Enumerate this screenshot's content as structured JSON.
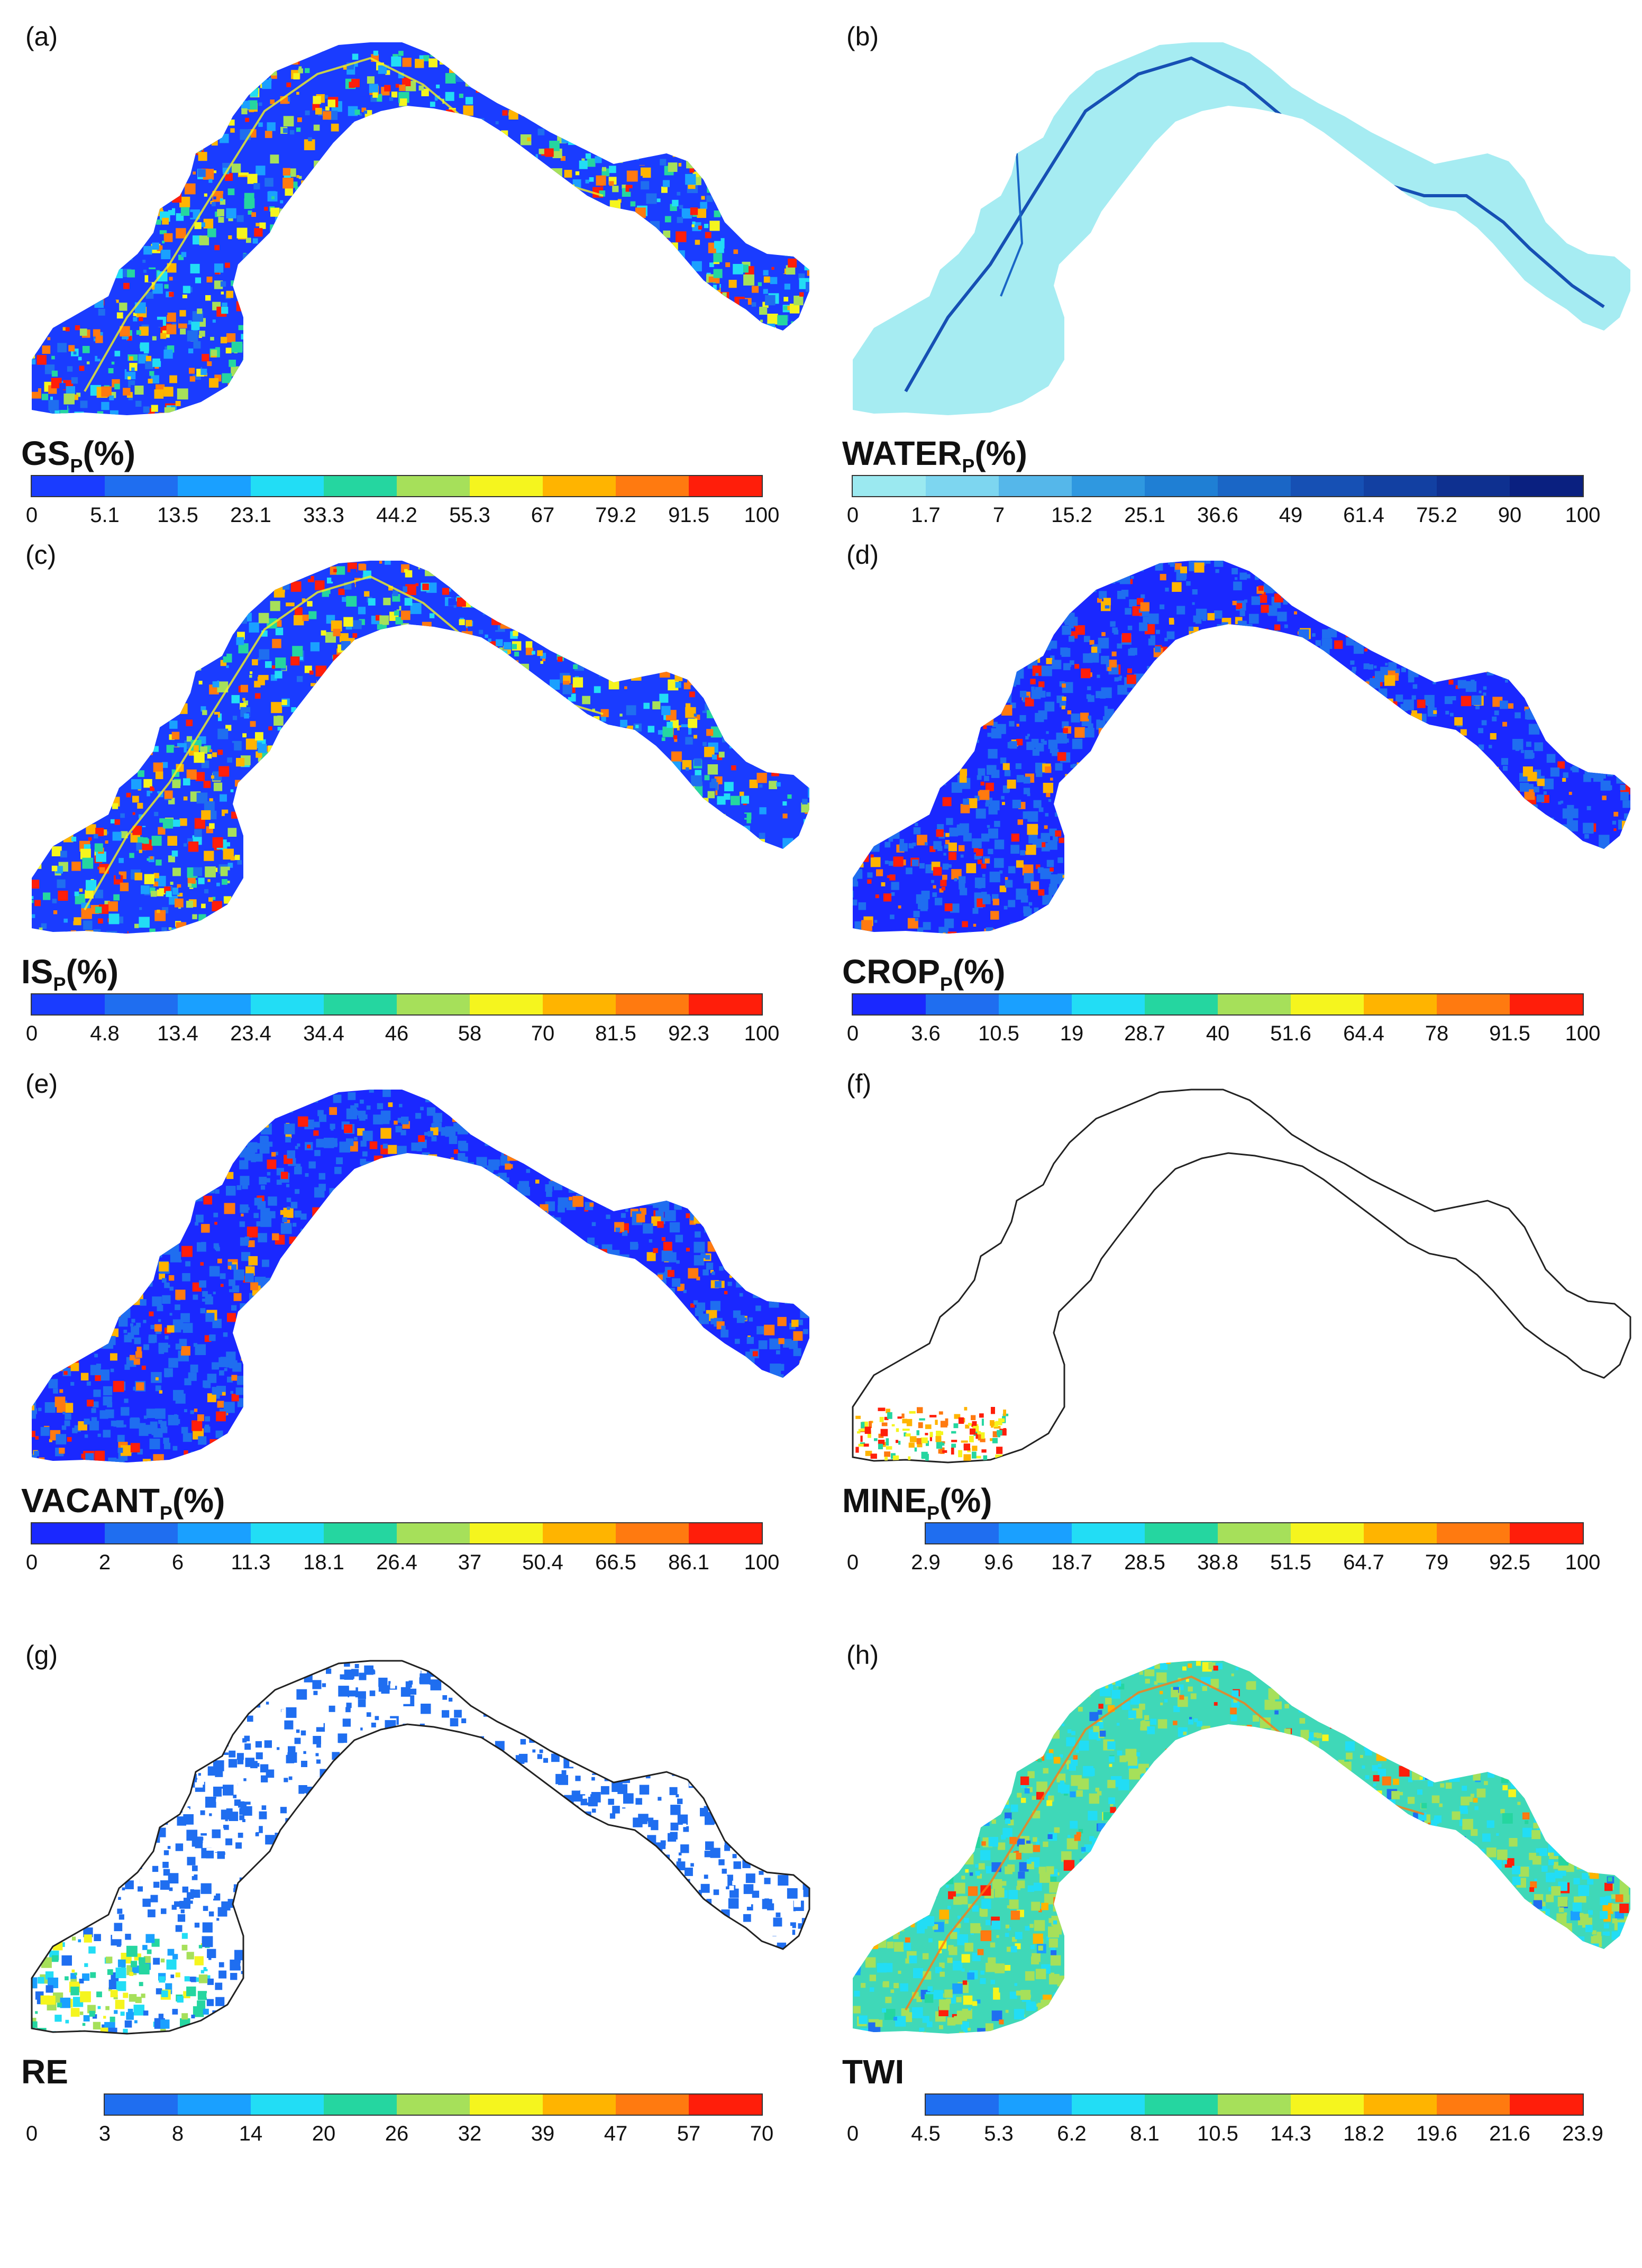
{
  "figure": {
    "panels": [
      {
        "id": "a",
        "letter": "(a)",
        "var_main": "GS",
        "var_sub": "P",
        "var_unit": "(%)",
        "pattern": "mixed",
        "ticks": [
          "0",
          "5.1",
          "13.5",
          "23.1",
          "33.3",
          "44.2",
          "55.3",
          "67",
          "79.2",
          "91.5",
          "100"
        ],
        "colors": [
          "#1a3cff",
          "#1f6ef0",
          "#1aa0ff",
          "#22ddf5",
          "#25d6a0",
          "#a6e05a",
          "#f5f51e",
          "#ffb400",
          "#ff7a10",
          "#ff1e0a"
        ],
        "bar_start_tick": 0
      },
      {
        "id": "b",
        "letter": "(b)",
        "var_main": "WATER",
        "var_sub": "P",
        "var_unit": "(%)",
        "pattern": "water",
        "ticks": [
          "0",
          "1.7",
          "7",
          "15.2",
          "25.1",
          "36.6",
          "49",
          "61.4",
          "75.2",
          "90",
          "100"
        ],
        "colors": [
          "#9be9f0",
          "#7dd6f0",
          "#55b7ea",
          "#2f98e0",
          "#1f7fd4",
          "#1a66c6",
          "#1650b4",
          "#1240a2",
          "#0e3090",
          "#0a2080"
        ],
        "bar_start_tick": 0
      },
      {
        "id": "c",
        "letter": "(c)",
        "var_main": "IS",
        "var_sub": "P",
        "var_unit": "(%)",
        "pattern": "mixed",
        "ticks": [
          "0",
          "4.8",
          "13.4",
          "23.4",
          "34.4",
          "46",
          "58",
          "70",
          "81.5",
          "92.3",
          "100"
        ],
        "colors": [
          "#1a3cff",
          "#1f6ef0",
          "#1aa0ff",
          "#22ddf5",
          "#25d6a0",
          "#a6e05a",
          "#f5f51e",
          "#ffb400",
          "#ff7a10",
          "#ff1e0a"
        ],
        "bar_start_tick": 0
      },
      {
        "id": "d",
        "letter": "(d)",
        "var_main": "CROP",
        "var_sub": "P",
        "var_unit": "(%)",
        "pattern": "low",
        "ticks": [
          "0",
          "3.6",
          "10.5",
          "19",
          "28.7",
          "40",
          "51.6",
          "64.4",
          "78",
          "91.5",
          "100"
        ],
        "colors": [
          "#1a28ff",
          "#1f6ef0",
          "#1aa0ff",
          "#22ddf5",
          "#25d6a0",
          "#a6e05a",
          "#f5f51e",
          "#ffb400",
          "#ff7a10",
          "#ff1e0a"
        ],
        "bar_start_tick": 0
      },
      {
        "id": "e",
        "letter": "(e)",
        "var_main": "VACANT",
        "var_sub": "P",
        "var_unit": "(%)",
        "pattern": "low",
        "ticks": [
          "0",
          "2",
          "6",
          "11.3",
          "18.1",
          "26.4",
          "37",
          "50.4",
          "66.5",
          "86.1",
          "100"
        ],
        "colors": [
          "#1a28ff",
          "#1f6ef0",
          "#1aa0ff",
          "#22ddf5",
          "#25d6a0",
          "#a6e05a",
          "#f5f51e",
          "#ffb400",
          "#ff7a10",
          "#ff1e0a"
        ],
        "bar_start_tick": 0
      },
      {
        "id": "f",
        "letter": "(f)",
        "var_main": "MINE",
        "var_sub": "P",
        "var_unit": "(%)",
        "pattern": "outline",
        "ticks": [
          "0",
          "2.9",
          "9.6",
          "18.7",
          "28.5",
          "38.8",
          "51.5",
          "64.7",
          "79",
          "92.5",
          "100"
        ],
        "colors": [
          "#1f6ef0",
          "#1aa0ff",
          "#22ddf5",
          "#25d6a0",
          "#a6e05a",
          "#f5f51e",
          "#ffb400",
          "#ff7a10",
          "#ff1e0a"
        ],
        "bar_start_tick": 1
      },
      {
        "id": "g",
        "letter": "(g)",
        "var_main": "RE",
        "var_sub": "",
        "var_unit": "",
        "pattern": "sparse",
        "ticks": [
          "0",
          "3",
          "8",
          "14",
          "20",
          "26",
          "32",
          "39",
          "47",
          "57",
          "70"
        ],
        "colors": [
          "#1f6ef0",
          "#1aa0ff",
          "#22ddf5",
          "#25d6a0",
          "#a6e05a",
          "#f5f51e",
          "#ffb400",
          "#ff7a10",
          "#ff1e0a"
        ],
        "bar_start_tick": 1
      },
      {
        "id": "h",
        "letter": "(h)",
        "var_main": "TWI",
        "var_sub": "",
        "var_unit": "",
        "pattern": "twi",
        "ticks": [
          "0",
          "4.5",
          "5.3",
          "6.2",
          "8.1",
          "10.5",
          "14.3",
          "18.2",
          "19.6",
          "21.6",
          "23.9"
        ],
        "colors": [
          "#1f6ef0",
          "#1aa0ff",
          "#22ddf5",
          "#25d6a0",
          "#a6e05a",
          "#f5f51e",
          "#ffb400",
          "#ff7a10",
          "#ff1e0a"
        ],
        "bar_start_tick": 1
      }
    ]
  }
}
